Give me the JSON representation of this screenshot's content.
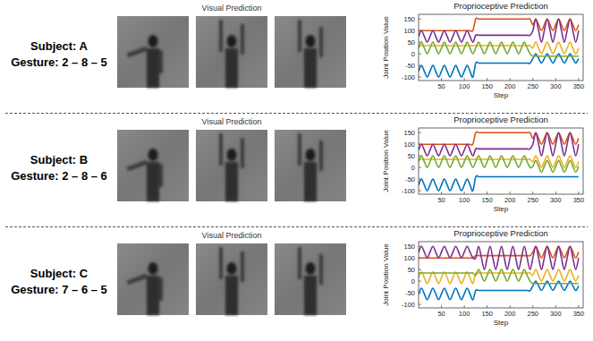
{
  "rows": [
    {
      "subject": "Subject: A",
      "gesture": "Gesture: 2 – 8 – 5",
      "visual_title": "Visual Prediction"
    },
    {
      "subject": "Subject: B",
      "gesture": "Gesture: 2 – 8 – 6",
      "visual_title": "Visual Prediction"
    },
    {
      "subject": "Subject: C",
      "gesture": "Gesture: 7 – 6 – 5",
      "visual_title": "Visual Prediction"
    }
  ],
  "chart_data": [
    {
      "type": "line",
      "title": "Proprioceptive Prediction",
      "x_label": "Step",
      "y_label": "Joint Position Value",
      "x": [
        0,
        6.25,
        12.5,
        18.75,
        25,
        31.25,
        37.5,
        43.75,
        50,
        56.25,
        62.5,
        68.75,
        75,
        81.25,
        87.5,
        93.75,
        100,
        106.25,
        112.5,
        118.75,
        125,
        131.25,
        137.5,
        143.75,
        150,
        156.25,
        162.5,
        168.75,
        175,
        181.25,
        187.5,
        193.75,
        200,
        206.25,
        212.5,
        218.75,
        225,
        231.25,
        237.5,
        243.75,
        250,
        256.25,
        262.5,
        268.75,
        275,
        281.25,
        287.5,
        293.75,
        300,
        306.25,
        312.5,
        318.75,
        325,
        331.25,
        337.5,
        343.75,
        350
      ],
      "xlim": [
        0,
        360
      ],
      "ylim": [
        -115,
        170
      ],
      "xticks": [
        50,
        100,
        150,
        200,
        250,
        300,
        350
      ],
      "yticks": [
        -100,
        -50,
        0,
        50,
        100,
        150
      ],
      "series": [
        {
          "color": "#0072bd",
          "values": [
            -75,
            -50,
            -75,
            -100,
            -75,
            -50,
            -75,
            -100,
            -75,
            -50,
            -75,
            -100,
            -75,
            -50,
            -75,
            -100,
            -75,
            -50,
            -75,
            -100,
            -40,
            -40,
            -40,
            -40,
            -40,
            -40,
            -40,
            -40,
            -40,
            -40,
            -40,
            -40,
            -40,
            -40,
            -40,
            -40,
            -40,
            -40,
            -40,
            -40,
            -20,
            0,
            -20,
            -40,
            -20,
            0,
            -20,
            -40,
            -20,
            0,
            -20,
            -40,
            -20,
            0,
            -20,
            -40,
            -20
          ]
        },
        {
          "color": "#d95319",
          "values": [
            100,
            100,
            100,
            100,
            100,
            100,
            100,
            100,
            100,
            100,
            100,
            100,
            100,
            100,
            100,
            100,
            100,
            100,
            100,
            100,
            150,
            150,
            150,
            150,
            150,
            150,
            150,
            150,
            150,
            150,
            150,
            150,
            150,
            150,
            150,
            150,
            150,
            150,
            150,
            150,
            125,
            150,
            125,
            100,
            125,
            150,
            125,
            100,
            125,
            150,
            125,
            100,
            125,
            150,
            125,
            100,
            125
          ]
        },
        {
          "color": "#edb120",
          "values": [
            35,
            35,
            35,
            35,
            35,
            35,
            35,
            35,
            35,
            35,
            35,
            35,
            35,
            35,
            35,
            35,
            35,
            35,
            35,
            35,
            35,
            35,
            35,
            35,
            35,
            35,
            35,
            35,
            35,
            35,
            35,
            35,
            35,
            35,
            35,
            35,
            35,
            35,
            35,
            35,
            25,
            50,
            25,
            0,
            25,
            50,
            25,
            0,
            25,
            50,
            25,
            0,
            25,
            50,
            25,
            0,
            25
          ]
        },
        {
          "color": "#7e2f8e",
          "values": [
            75,
            100,
            75,
            50,
            75,
            100,
            75,
            50,
            75,
            100,
            75,
            50,
            75,
            100,
            75,
            50,
            75,
            100,
            75,
            50,
            80,
            80,
            80,
            80,
            80,
            80,
            80,
            80,
            80,
            80,
            80,
            80,
            80,
            80,
            80,
            80,
            80,
            80,
            80,
            80,
            100,
            150,
            100,
            50,
            100,
            150,
            100,
            50,
            100,
            150,
            100,
            50,
            100,
            150,
            100,
            50,
            100
          ]
        },
        {
          "color": "#77ac30",
          "values": [
            25,
            50,
            25,
            0,
            25,
            50,
            25,
            0,
            25,
            50,
            25,
            0,
            25,
            50,
            25,
            0,
            25,
            50,
            25,
            0,
            25,
            50,
            25,
            0,
            25,
            50,
            25,
            0,
            25,
            50,
            25,
            0,
            25,
            50,
            25,
            0,
            25,
            50,
            25,
            0,
            -10,
            -10,
            -10,
            -10,
            -10,
            -10,
            -10,
            -10,
            -10,
            -10,
            -10,
            -10,
            -10,
            -10,
            -10,
            -10,
            -10
          ]
        }
      ]
    },
    {
      "type": "line",
      "title": "Proprioceptive Prediction",
      "x_label": "Step",
      "y_label": "Joint Position Value",
      "x": [
        0,
        6.25,
        12.5,
        18.75,
        25,
        31.25,
        37.5,
        43.75,
        50,
        56.25,
        62.5,
        68.75,
        75,
        81.25,
        87.5,
        93.75,
        100,
        106.25,
        112.5,
        118.75,
        125,
        131.25,
        137.5,
        143.75,
        150,
        156.25,
        162.5,
        168.75,
        175,
        181.25,
        187.5,
        193.75,
        200,
        206.25,
        212.5,
        218.75,
        225,
        231.25,
        237.5,
        243.75,
        250,
        256.25,
        262.5,
        268.75,
        275,
        281.25,
        287.5,
        293.75,
        300,
        306.25,
        312.5,
        318.75,
        325,
        331.25,
        337.5,
        343.75,
        350
      ],
      "xlim": [
        0,
        360
      ],
      "ylim": [
        -115,
        170
      ],
      "xticks": [
        50,
        100,
        150,
        200,
        250,
        300,
        350
      ],
      "yticks": [
        -100,
        -50,
        0,
        50,
        100,
        150
      ],
      "series": [
        {
          "color": "#0072bd",
          "values": [
            -75,
            -50,
            -75,
            -100,
            -75,
            -50,
            -75,
            -100,
            -75,
            -50,
            -75,
            -100,
            -75,
            -50,
            -75,
            -100,
            -75,
            -50,
            -75,
            -100,
            -40,
            -40,
            -40,
            -40,
            -40,
            -40,
            -40,
            -40,
            -40,
            -40,
            -40,
            -40,
            -40,
            -40,
            -40,
            -40,
            -40,
            -40,
            -40,
            -40,
            -40,
            -40,
            -40,
            -40,
            -40,
            -40,
            -40,
            -40,
            -40,
            -40,
            -40,
            -40,
            -40,
            -40,
            -40,
            -40,
            -40
          ]
        },
        {
          "color": "#d95319",
          "values": [
            100,
            100,
            100,
            100,
            100,
            100,
            100,
            100,
            100,
            100,
            100,
            100,
            100,
            100,
            100,
            100,
            100,
            100,
            100,
            100,
            150,
            150,
            150,
            150,
            150,
            150,
            150,
            150,
            150,
            150,
            150,
            150,
            150,
            150,
            150,
            150,
            150,
            150,
            150,
            150,
            125,
            150,
            125,
            100,
            125,
            150,
            125,
            100,
            125,
            150,
            125,
            100,
            125,
            150,
            125,
            100,
            125
          ]
        },
        {
          "color": "#edb120",
          "values": [
            35,
            35,
            35,
            35,
            35,
            35,
            35,
            35,
            35,
            35,
            35,
            35,
            35,
            35,
            35,
            35,
            35,
            35,
            35,
            35,
            35,
            35,
            35,
            35,
            35,
            35,
            35,
            35,
            35,
            35,
            35,
            35,
            35,
            35,
            35,
            35,
            35,
            35,
            35,
            35,
            25,
            50,
            25,
            0,
            25,
            50,
            25,
            0,
            25,
            50,
            25,
            0,
            25,
            50,
            25,
            0,
            25
          ]
        },
        {
          "color": "#7e2f8e",
          "values": [
            75,
            100,
            75,
            50,
            75,
            100,
            75,
            50,
            75,
            100,
            75,
            50,
            75,
            100,
            75,
            50,
            75,
            100,
            75,
            50,
            80,
            80,
            80,
            80,
            80,
            80,
            80,
            80,
            80,
            80,
            80,
            80,
            80,
            80,
            80,
            80,
            80,
            80,
            80,
            80,
            100,
            150,
            100,
            50,
            100,
            150,
            100,
            50,
            100,
            150,
            100,
            50,
            100,
            150,
            100,
            50,
            100
          ]
        },
        {
          "color": "#77ac30",
          "values": [
            25,
            50,
            25,
            0,
            25,
            50,
            25,
            0,
            25,
            50,
            25,
            0,
            25,
            50,
            25,
            0,
            25,
            50,
            25,
            0,
            25,
            50,
            25,
            0,
            25,
            50,
            25,
            0,
            25,
            50,
            25,
            0,
            25,
            50,
            25,
            0,
            25,
            50,
            25,
            0,
            5,
            30,
            5,
            -20,
            5,
            30,
            5,
            -20,
            5,
            30,
            5,
            -20,
            5,
            30,
            5,
            -20,
            5
          ]
        }
      ]
    },
    {
      "type": "line",
      "title": "Proprioceptive Prediction",
      "x_label": "Step",
      "y_label": "Joint Position Value",
      "x": [
        0,
        6.25,
        12.5,
        18.75,
        25,
        31.25,
        37.5,
        43.75,
        50,
        56.25,
        62.5,
        68.75,
        75,
        81.25,
        87.5,
        93.75,
        100,
        106.25,
        112.5,
        118.75,
        125,
        131.25,
        137.5,
        143.75,
        150,
        156.25,
        162.5,
        168.75,
        175,
        181.25,
        187.5,
        193.75,
        200,
        206.25,
        212.5,
        218.75,
        225,
        231.25,
        237.5,
        243.75,
        250,
        256.25,
        262.5,
        268.75,
        275,
        281.25,
        287.5,
        293.75,
        300,
        306.25,
        312.5,
        318.75,
        325,
        331.25,
        337.5,
        343.75,
        350
      ],
      "xlim": [
        0,
        360
      ],
      "ylim": [
        -115,
        170
      ],
      "xticks": [
        50,
        100,
        150,
        200,
        250,
        300,
        350
      ],
      "yticks": [
        -100,
        -50,
        0,
        50,
        100,
        150
      ],
      "series": [
        {
          "color": "#0072bd",
          "values": [
            -55,
            -30,
            -55,
            -80,
            -55,
            -30,
            -55,
            -80,
            -55,
            -30,
            -55,
            -80,
            -55,
            -30,
            -55,
            -80,
            -55,
            -30,
            -55,
            -80,
            -40,
            -40,
            -40,
            -40,
            -40,
            -40,
            -40,
            -40,
            -40,
            -40,
            -40,
            -40,
            -40,
            -40,
            -40,
            -40,
            -40,
            -40,
            -40,
            -40,
            -20,
            0,
            -20,
            -40,
            -20,
            0,
            -20,
            -40,
            -20,
            0,
            -20,
            -40,
            -20,
            0,
            -20,
            -40,
            -20
          ]
        },
        {
          "color": "#d95319",
          "values": [
            100,
            100,
            100,
            100,
            100,
            100,
            100,
            100,
            100,
            100,
            100,
            100,
            100,
            100,
            100,
            100,
            100,
            100,
            100,
            100,
            110,
            110,
            110,
            110,
            110,
            110,
            110,
            110,
            110,
            110,
            110,
            110,
            110,
            110,
            110,
            110,
            110,
            110,
            110,
            110,
            125,
            150,
            125,
            100,
            125,
            150,
            125,
            100,
            125,
            150,
            125,
            100,
            125,
            150,
            125,
            100,
            125
          ]
        },
        {
          "color": "#edb120",
          "values": [
            15,
            40,
            15,
            -10,
            15,
            40,
            15,
            -10,
            15,
            40,
            15,
            -10,
            15,
            40,
            15,
            -10,
            15,
            40,
            15,
            -10,
            35,
            35,
            35,
            35,
            35,
            35,
            35,
            35,
            35,
            35,
            35,
            35,
            35,
            35,
            35,
            35,
            35,
            35,
            35,
            35,
            25,
            50,
            25,
            0,
            25,
            50,
            25,
            0,
            25,
            50,
            25,
            0,
            25,
            50,
            25,
            0,
            25
          ]
        },
        {
          "color": "#7e2f8e",
          "values": [
            125,
            150,
            125,
            100,
            125,
            150,
            125,
            100,
            125,
            150,
            125,
            100,
            125,
            150,
            125,
            100,
            125,
            150,
            125,
            100,
            100,
            150,
            100,
            50,
            100,
            150,
            100,
            50,
            100,
            150,
            100,
            50,
            100,
            150,
            100,
            50,
            100,
            150,
            100,
            50,
            100,
            150,
            100,
            50,
            100,
            150,
            100,
            50,
            100,
            150,
            100,
            50,
            100,
            150,
            100,
            50,
            100
          ]
        },
        {
          "color": "#77ac30",
          "values": [
            35,
            35,
            35,
            35,
            35,
            35,
            35,
            35,
            35,
            35,
            35,
            35,
            35,
            35,
            35,
            35,
            35,
            35,
            35,
            35,
            25,
            50,
            25,
            0,
            25,
            50,
            25,
            0,
            25,
            50,
            25,
            0,
            25,
            50,
            25,
            0,
            25,
            50,
            25,
            0,
            -10,
            -10,
            -10,
            -10,
            -10,
            -10,
            -10,
            -10,
            -10,
            -10,
            -10,
            -10,
            -10,
            -10,
            -10,
            -10,
            -10
          ]
        }
      ]
    }
  ]
}
